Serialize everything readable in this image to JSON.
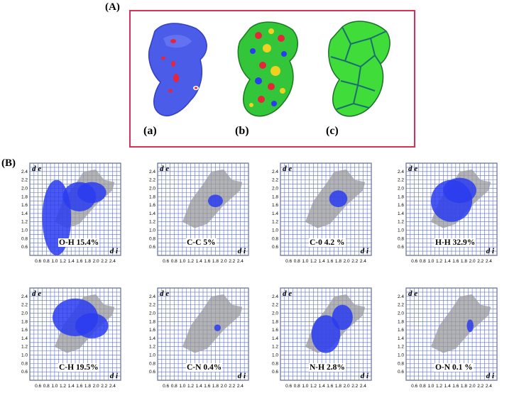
{
  "figure": {
    "panel_a_label": "(A)",
    "panel_b_label": "(B)",
    "surfaces": [
      {
        "label": "(a)",
        "kind": "dnorm"
      },
      {
        "label": "(b)",
        "kind": "shape-index"
      },
      {
        "label": "(c)",
        "kind": "curvedness"
      }
    ],
    "plot_axis": {
      "de_label": "d e",
      "di_label": "d i"
    },
    "fingerprints": [
      {
        "label": "O-H 15.4%",
        "contact": "O-H",
        "percent": 15.4
      },
      {
        "label": "C-C 5%",
        "contact": "C-C",
        "percent": 5
      },
      {
        "label": "C-0 4.2 %",
        "contact": "C-O",
        "percent": 4.2
      },
      {
        "label": "H-H 32.9%",
        "contact": "H-H",
        "percent": 32.9
      },
      {
        "label": "C-H 19.5%",
        "contact": "C-H",
        "percent": 19.5
      },
      {
        "label": "C-N 0.4%",
        "contact": "C-N",
        "percent": 0.4
      },
      {
        "label": "N-H 2.8%",
        "contact": "N-H",
        "percent": 2.8
      },
      {
        "label": "O-N 0.1 %",
        "contact": "O-N",
        "percent": 0.1
      }
    ],
    "colors": {
      "frame": "#d9305a",
      "grid": "#5a6fd0",
      "gray": "#9a9a9a",
      "blue": "#2a3cf0"
    }
  },
  "chart_data": {
    "type": "scatter",
    "xlim": [
      0.4,
      2.6
    ],
    "ylim": [
      0.4,
      2.6
    ],
    "x_ticks": [
      "0.6",
      "0.8",
      "1.0",
      "1.2",
      "1.4",
      "1.6",
      "1.8",
      "2.0",
      "2.2",
      "2.4"
    ],
    "y_ticks": [
      "0.6",
      "0.8",
      "1.0",
      "1.2",
      "1.4",
      "1.6",
      "1.8",
      "2.0",
      "2.2",
      "2.4"
    ],
    "grid": true
  }
}
